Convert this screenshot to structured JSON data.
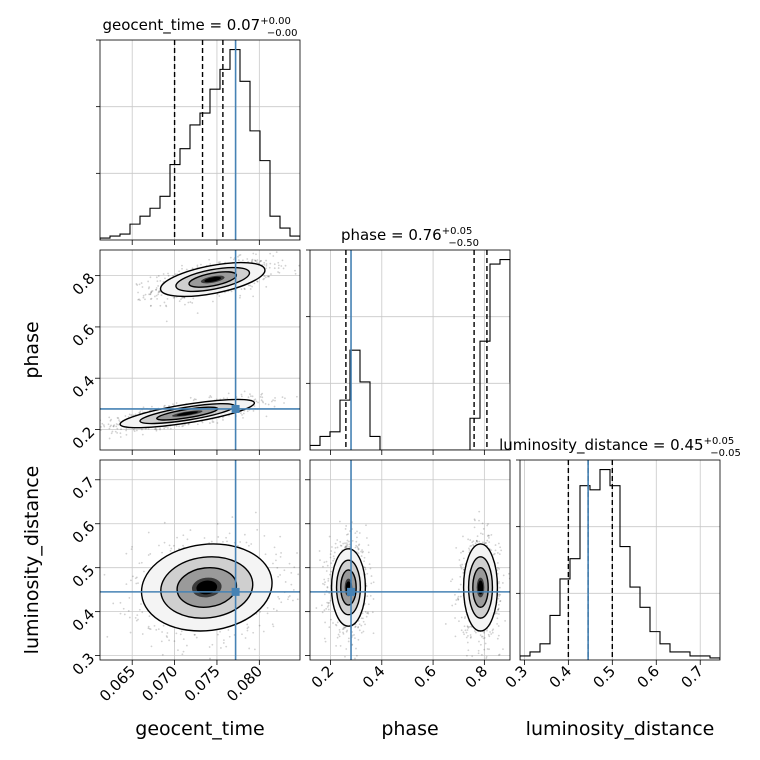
{
  "chart_data": {
    "type": "corner",
    "parameters": [
      "geocent_time",
      "phase",
      "luminosity_distance"
    ],
    "truths": [
      0.0772,
      0.28,
      0.445
    ],
    "colors": {
      "truth": "#4682b4",
      "contour": "#000000",
      "grid": "#c8c8c8"
    },
    "grid": true,
    "titles": [
      {
        "name": "geocent_time",
        "value": "0.07",
        "plus": "+0.00",
        "minus": "−0.00"
      },
      {
        "name": "phase",
        "value": "0.76",
        "plus": "+0.05",
        "minus": "−0.50"
      },
      {
        "name": "luminosity_distance",
        "value": "0.45",
        "plus": "+0.05",
        "minus": "−0.05"
      }
    ],
    "axis_labels": {
      "x": [
        "geocent_time",
        "phase",
        "luminosity_distance"
      ],
      "y": [
        "phase",
        "luminosity_distance"
      ]
    },
    "ranges": [
      [
        0.0612,
        0.0848
      ],
      [
        0.12,
        0.9
      ],
      [
        0.29,
        0.745
      ]
    ],
    "ticks": {
      "geocent_time": {
        "values": [
          0.065,
          0.07,
          0.075,
          0.08
        ],
        "labels": [
          "0.065",
          "0.070",
          "0.075",
          "0.080"
        ]
      },
      "phase": {
        "values": [
          0.2,
          0.4,
          0.6,
          0.8
        ],
        "labels": [
          "0.2",
          "0.4",
          "0.6",
          "0.8"
        ]
      },
      "luminosity_distance": {
        "values": [
          0.3,
          0.4,
          0.5,
          0.6,
          0.7
        ],
        "labels": [
          "0.3",
          "0.4",
          "0.5",
          "0.6",
          "0.7"
        ]
      }
    },
    "quantiles": [
      [
        0.07,
        0.0733,
        0.0757
      ],
      [
        0.26,
        0.76,
        0.81
      ],
      [
        0.4,
        0.445,
        0.5
      ]
    ],
    "histograms": [
      {
        "edges_from": 0.0612,
        "bin_width": 0.00118,
        "counts": [
          1,
          2,
          3,
          8,
          12,
          16,
          22,
          38,
          46,
          58,
          64,
          76,
          86,
          96,
          80,
          55,
          40,
          12,
          6,
          2
        ]
      },
      {
        "edges_from": 0.12,
        "bin_width": 0.039,
        "counts": [
          2,
          6,
          8,
          22,
          44,
          30,
          6,
          0,
          0,
          0,
          0,
          0,
          0,
          0,
          0,
          0,
          14,
          48,
          82,
          84,
          30
        ]
      },
      {
        "edges_from": 0.29,
        "bin_width": 0.02275,
        "counts": [
          2,
          4,
          8,
          22,
          40,
          50,
          86,
          84,
          94,
          86,
          56,
          36,
          26,
          14,
          8,
          4,
          4,
          2,
          2,
          1
        ]
      }
    ],
    "modes": [
      {
        "pair": [
          0,
          1
        ],
        "x": 0.0745,
        "y": 0.785,
        "sx": 0.0028,
        "sy": 0.03,
        "rho": 0.55,
        "rx": [
          0.069,
          0.083
        ]
      },
      {
        "pair": [
          0,
          1
        ],
        "x": 0.0715,
        "y": 0.262,
        "sx": 0.0036,
        "sy": 0.025,
        "rho": 0.75,
        "rx": [
          0.062,
          0.081
        ]
      },
      {
        "pair": [
          0,
          2
        ],
        "x": 0.0738,
        "y": 0.455,
        "sx": 0.0035,
        "sy": 0.045,
        "rho": 0.1,
        "rx": [
          0.061,
          0.084
        ]
      },
      {
        "pair": [
          1,
          2
        ],
        "x": 0.27,
        "y": 0.455,
        "sx": 0.03,
        "sy": 0.04,
        "rho": 0.0,
        "rx": [
          0.14,
          0.42
        ]
      },
      {
        "pair": [
          1,
          2
        ],
        "x": 0.785,
        "y": 0.455,
        "sx": 0.03,
        "sy": 0.045,
        "rho": 0.0,
        "rx": [
          0.64,
          0.9
        ]
      }
    ]
  }
}
